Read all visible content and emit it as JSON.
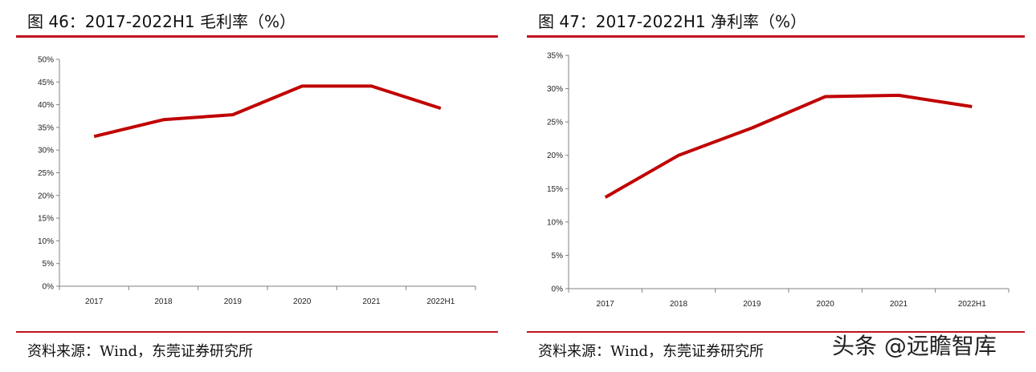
{
  "panels": [
    {
      "title": "图 46：2017-2022H1 毛利率（%）",
      "source": "资料来源：Wind，东莞证券研究所"
    },
    {
      "title": "图 47：2017-2022H1 净利率（%）",
      "source": "资料来源：Wind，东莞证券研究所"
    }
  ],
  "watermark": "头条 @远瞻智库",
  "colors": {
    "accent": "#c0121f",
    "line": "#c00000",
    "axis": "#808080"
  },
  "chart_data": [
    {
      "type": "line",
      "title": "2017-2022H1 毛利率（%）",
      "categories": [
        "2017",
        "2018",
        "2019",
        "2020",
        "2021",
        "2022H1"
      ],
      "series": [
        {
          "values": [
            33.0,
            36.7,
            37.8,
            44.1,
            44.1,
            39.2
          ]
        }
      ],
      "yticks": [
        "0%",
        "5%",
        "10%",
        "15%",
        "20%",
        "25%",
        "30%",
        "35%",
        "40%",
        "45%",
        "50%"
      ],
      "ylim": [
        0,
        50
      ],
      "grid": false
    },
    {
      "type": "line",
      "title": "2017-2022H1 净利率（%）",
      "categories": [
        "2017",
        "2018",
        "2019",
        "2020",
        "2021",
        "2022H1"
      ],
      "series": [
        {
          "values": [
            13.7,
            20.0,
            24.1,
            28.8,
            29.0,
            27.3
          ]
        }
      ],
      "yticks": [
        "0%",
        "5%",
        "10%",
        "15%",
        "20%",
        "25%",
        "30%",
        "35%"
      ],
      "ylim": [
        0,
        35
      ],
      "grid": false
    }
  ]
}
